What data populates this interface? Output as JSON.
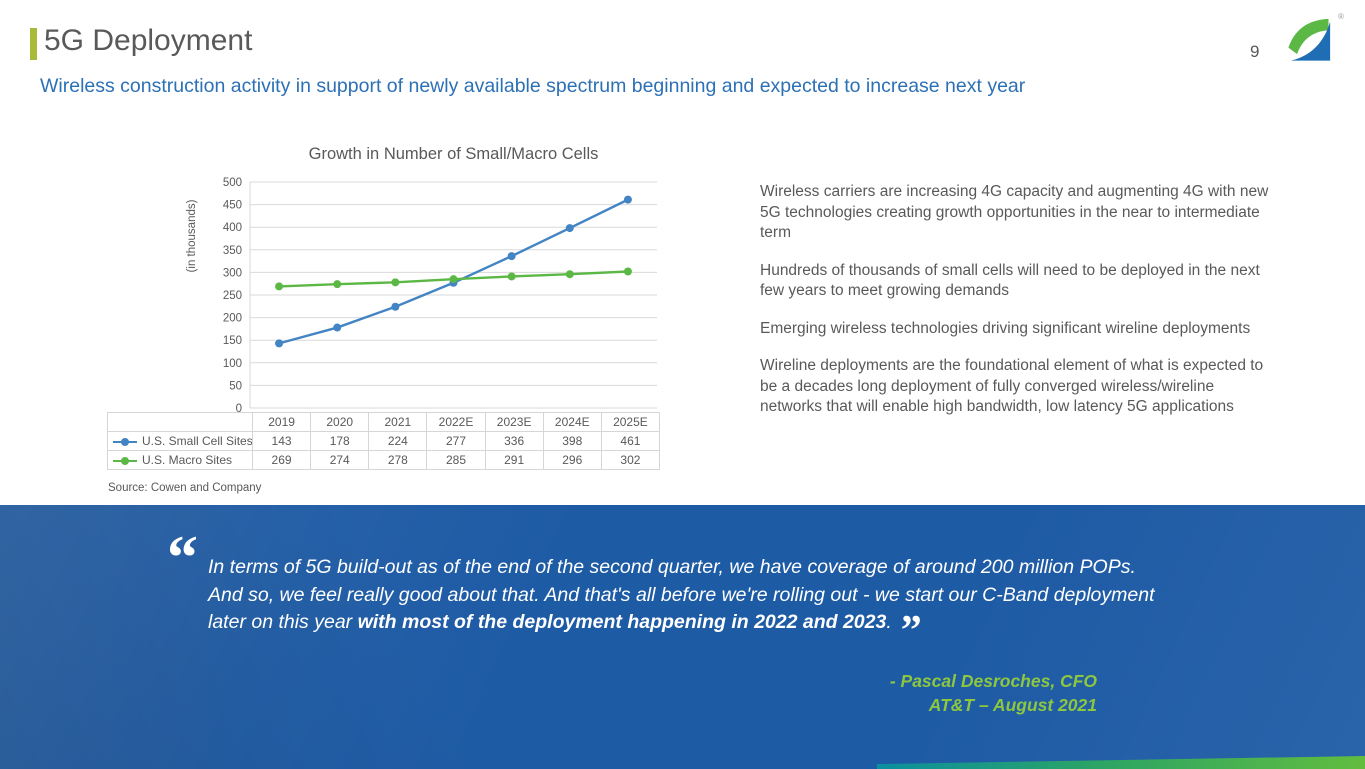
{
  "header": {
    "title": "5G Deployment",
    "page_number": "9",
    "logo_registered": "®",
    "subtitle": "Wireless construction activity in support of newly available spectrum beginning and expected to increase next year"
  },
  "chart_data": {
    "type": "line",
    "title": "Growth in Number of Small/Macro Cells",
    "xlabel": "",
    "ylabel": "(in thousands)",
    "categories": [
      "2019",
      "2020",
      "2021",
      "2022E",
      "2023E",
      "2024E",
      "2025E"
    ],
    "series": [
      {
        "name": "U.S. Small Cell Sites",
        "color": "#4284c4",
        "values": [
          143,
          178,
          224,
          277,
          336,
          398,
          461
        ]
      },
      {
        "name": "U.S. Macro Sites",
        "color": "#5cb845",
        "values": [
          269,
          274,
          278,
          285,
          291,
          296,
          302
        ]
      }
    ],
    "ylim": [
      0,
      500
    ],
    "ytick_step": 50,
    "grid": true,
    "legend_position": "table-left",
    "source_note": "Source:  Cowen and Company"
  },
  "bullets": [
    "Wireless carriers are increasing 4G capacity and augmenting 4G with new 5G technologies creating growth opportunities in the near to intermediate term",
    "Hundreds of thousands of small cells will need to be deployed in the next few years to meet growing demands",
    "Emerging wireless technologies driving significant wireline deployments",
    "Wireline deployments are the foundational element of what is expected to be a decades long deployment of fully converged wireless/wireline networks that will enable high bandwidth, low latency 5G applications"
  ],
  "quote": {
    "open_mark": "“",
    "close_mark": "”",
    "text_regular": "In terms of 5G build-out as of the end of the second quarter, we have coverage of around 200 million POPs. And so, we feel really good about that. And that's all before we're rolling out - we start our C-Band deployment later on this year ",
    "text_bold": "with most of the deployment happening in 2022 and 2023",
    "text_end": ".",
    "attribution_line1": "- Pascal Desroches, CFO",
    "attribution_line2": "AT&T – August 2021"
  },
  "colors": {
    "accent_green": "#a9ba3a",
    "title_gray": "#595959",
    "subtitle_blue": "#2c70b6",
    "banner_blue": "#1e5ba5",
    "quote_green": "#8dc63f",
    "strip_teal": "#0c8fa0",
    "strip_green": "#62bd3f"
  }
}
